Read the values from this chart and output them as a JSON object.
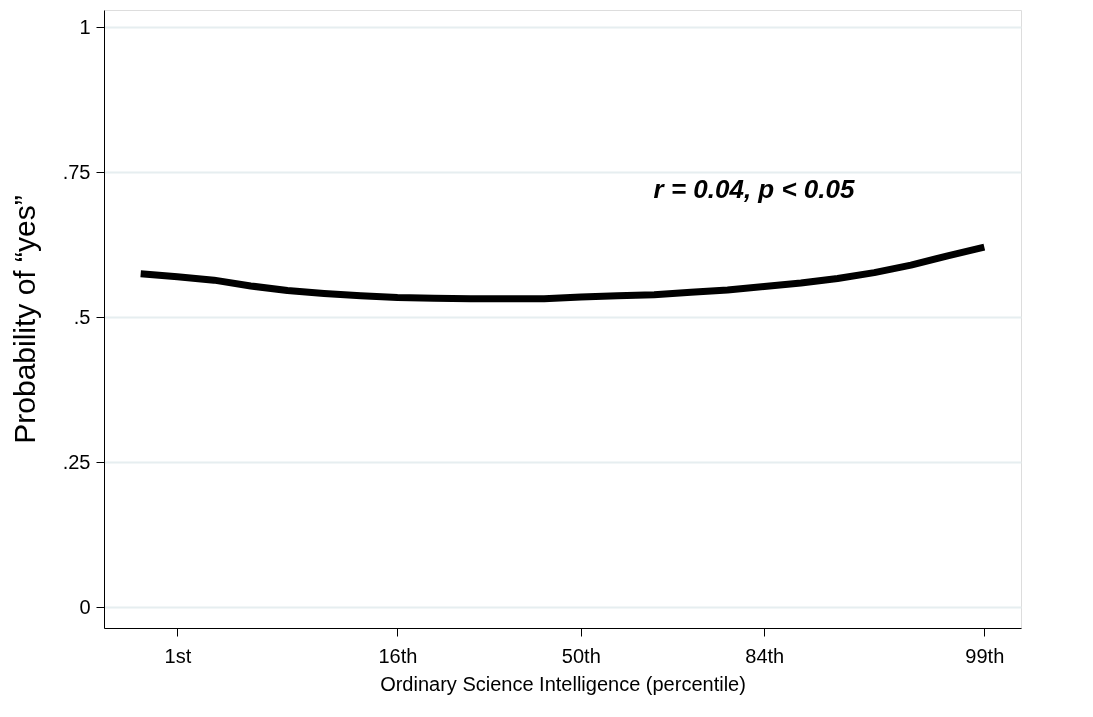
{
  "chart_data": {
    "type": "line",
    "xlabel": "Ordinary Science Intelligence (percentile)",
    "ylabel": "Probability of “yes”",
    "annotations": [
      "r = 0.04, p < 0.05"
    ],
    "categories": [
      null,
      "1st",
      null,
      null,
      null,
      null,
      null,
      "16th",
      null,
      null,
      null,
      null,
      "50th",
      null,
      null,
      null,
      null,
      "84th",
      null,
      null,
      null,
      null,
      null,
      "99th"
    ],
    "series": [
      {
        "color": "#000000",
        "values": [
          0.575,
          0.57,
          0.564,
          0.554,
          0.546,
          0.541,
          0.537,
          0.534,
          0.533,
          0.532,
          0.532,
          0.532,
          0.535,
          0.537,
          0.539,
          0.543,
          0.547,
          0.553,
          0.559,
          0.567,
          0.577,
          0.59,
          0.606,
          0.621
        ]
      }
    ],
    "ylim": [
      -0.036,
      1.03
    ],
    "yticks": [
      {
        "value": 0,
        "label": "0"
      },
      {
        "value": 0.25,
        "label": ".25"
      },
      {
        "value": 0.5,
        "label": ".5"
      },
      {
        "value": 0.75,
        "label": ".75"
      },
      {
        "value": 1,
        "label": "1"
      }
    ],
    "grid": "y",
    "line_style": "solid",
    "marker": "none"
  }
}
